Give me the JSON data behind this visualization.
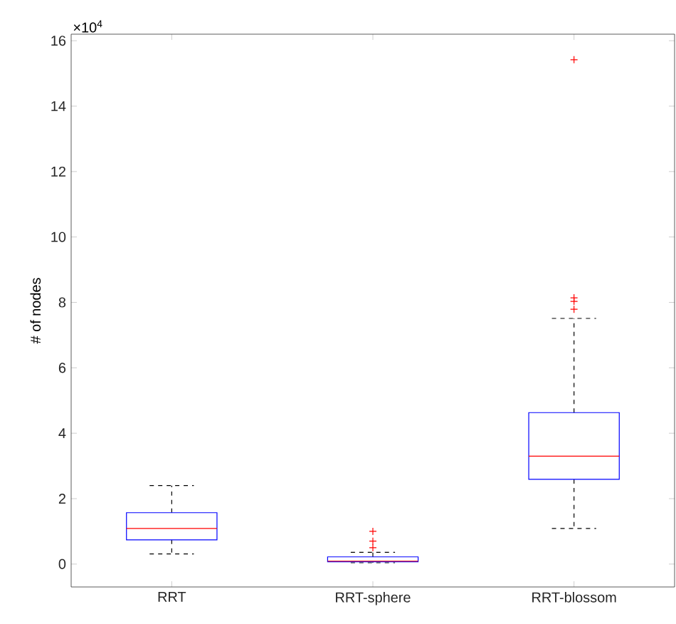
{
  "chart_data": {
    "type": "box",
    "ylabel": "# of nodes",
    "annotations": [
      "×10$^{4}$"
    ],
    "categories": [
      "RRT",
      "RRT-sphere",
      "RRT-blossom"
    ],
    "boxes": [
      {
        "low": 0.31,
        "q1": 0.74,
        "median": 1.09,
        "q3": 1.57,
        "high": 2.4
      },
      {
        "low": 0.04,
        "q1": 0.07,
        "median": 0.09,
        "q3": 0.22,
        "high": 0.36,
        "outliers": [
          0.5,
          0.7,
          1.0
        ]
      },
      {
        "low": 1.09,
        "q1": 2.59,
        "median": 3.3,
        "q3": 4.63,
        "high": 7.51,
        "outliers": [
          7.79,
          8.03,
          8.14,
          15.42
        ]
      }
    ],
    "ylim": [
      -0.7,
      16.2
    ],
    "yticks": [
      0,
      2,
      4,
      6,
      8,
      10,
      12,
      14,
      16
    ],
    "grid": false,
    "marker": "cross"
  }
}
